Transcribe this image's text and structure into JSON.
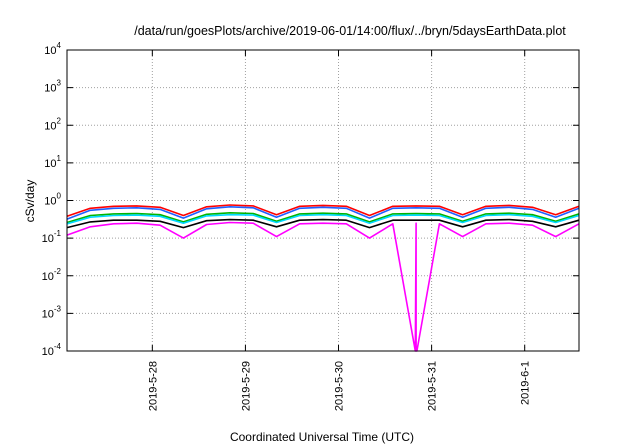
{
  "chart_data": {
    "type": "line",
    "title": "/data/run/goesPlots/archive/2019-06-01/14:00/flux/../bryn/5daysEarthData.plot",
    "xlabel": "Coordinated Universal Time (UTC)",
    "ylabel": "cSv/day",
    "y_scale": "log",
    "ylim": [
      0.0001,
      10000
    ],
    "y_ticks": [
      {
        "base": "10",
        "exp": "-4"
      },
      {
        "base": "10",
        "exp": "-3"
      },
      {
        "base": "10",
        "exp": "-2"
      },
      {
        "base": "10",
        "exp": "-1"
      },
      {
        "base": "10",
        "exp": "0"
      },
      {
        "base": "10",
        "exp": "1"
      },
      {
        "base": "10",
        "exp": "2"
      },
      {
        "base": "10",
        "exp": "3"
      },
      {
        "base": "10",
        "exp": "4"
      }
    ],
    "xlim": [
      "2019-05-27 02:00",
      "2019-06-01 14:00"
    ],
    "x_ticks": [
      "2019-5-28",
      "2019-5-29",
      "2019-5-30",
      "2019-5-31",
      "2019-6-1"
    ],
    "grid": true,
    "series": [
      {
        "color": "#ff0000",
        "values": [
          [
            "2019-05-27 02:00",
            0.38
          ],
          [
            "2019-05-27 08:00",
            0.62
          ],
          [
            "2019-05-27 14:00",
            0.7
          ],
          [
            "2019-05-27 20:00",
            0.72
          ],
          [
            "2019-05-28 02:00",
            0.66
          ],
          [
            "2019-05-28 08:00",
            0.4
          ],
          [
            "2019-05-28 14:00",
            0.68
          ],
          [
            "2019-05-28 20:00",
            0.76
          ],
          [
            "2019-05-29 02:00",
            0.72
          ],
          [
            "2019-05-29 08:00",
            0.42
          ],
          [
            "2019-05-29 14:00",
            0.7
          ],
          [
            "2019-05-29 20:00",
            0.74
          ],
          [
            "2019-05-30 02:00",
            0.7
          ],
          [
            "2019-05-30 08:00",
            0.4
          ],
          [
            "2019-05-30 14:00",
            0.7
          ],
          [
            "2019-05-30 20:00",
            0.72
          ],
          [
            "2019-05-31 02:00",
            0.7
          ],
          [
            "2019-05-31 08:00",
            0.42
          ],
          [
            "2019-05-31 14:00",
            0.7
          ],
          [
            "2019-05-31 20:00",
            0.74
          ],
          [
            "2019-06-01 02:00",
            0.66
          ],
          [
            "2019-06-01 08:00",
            0.42
          ],
          [
            "2019-06-01 14:00",
            0.7
          ]
        ]
      },
      {
        "color": "#1f5fff",
        "values": [
          [
            "2019-05-27 02:00",
            0.32
          ],
          [
            "2019-05-27 08:00",
            0.55
          ],
          [
            "2019-05-27 14:00",
            0.62
          ],
          [
            "2019-05-27 20:00",
            0.64
          ],
          [
            "2019-05-28 02:00",
            0.58
          ],
          [
            "2019-05-28 08:00",
            0.34
          ],
          [
            "2019-05-28 14:00",
            0.6
          ],
          [
            "2019-05-28 20:00",
            0.68
          ],
          [
            "2019-05-29 02:00",
            0.64
          ],
          [
            "2019-05-29 08:00",
            0.36
          ],
          [
            "2019-05-29 14:00",
            0.62
          ],
          [
            "2019-05-29 20:00",
            0.66
          ],
          [
            "2019-05-30 02:00",
            0.62
          ],
          [
            "2019-05-30 08:00",
            0.34
          ],
          [
            "2019-05-30 14:00",
            0.62
          ],
          [
            "2019-05-30 20:00",
            0.64
          ],
          [
            "2019-05-31 02:00",
            0.62
          ],
          [
            "2019-05-31 08:00",
            0.36
          ],
          [
            "2019-05-31 14:00",
            0.62
          ],
          [
            "2019-05-31 20:00",
            0.66
          ],
          [
            "2019-06-01 02:00",
            0.58
          ],
          [
            "2019-06-01 08:00",
            0.36
          ],
          [
            "2019-06-01 14:00",
            0.62
          ]
        ]
      },
      {
        "color": "#00b400",
        "values": [
          [
            "2019-05-27 02:00",
            0.26
          ],
          [
            "2019-05-27 08:00",
            0.4
          ],
          [
            "2019-05-27 14:00",
            0.44
          ],
          [
            "2019-05-27 20:00",
            0.45
          ],
          [
            "2019-05-28 02:00",
            0.42
          ],
          [
            "2019-05-28 08:00",
            0.27
          ],
          [
            "2019-05-28 14:00",
            0.43
          ],
          [
            "2019-05-28 20:00",
            0.47
          ],
          [
            "2019-05-29 02:00",
            0.45
          ],
          [
            "2019-05-29 08:00",
            0.28
          ],
          [
            "2019-05-29 14:00",
            0.44
          ],
          [
            "2019-05-29 20:00",
            0.46
          ],
          [
            "2019-05-30 02:00",
            0.44
          ],
          [
            "2019-05-30 08:00",
            0.27
          ],
          [
            "2019-05-30 14:00",
            0.44
          ],
          [
            "2019-05-30 20:00",
            0.45
          ],
          [
            "2019-05-31 02:00",
            0.44
          ],
          [
            "2019-05-31 08:00",
            0.28
          ],
          [
            "2019-05-31 14:00",
            0.44
          ],
          [
            "2019-05-31 20:00",
            0.46
          ],
          [
            "2019-06-01 02:00",
            0.42
          ],
          [
            "2019-06-01 08:00",
            0.28
          ],
          [
            "2019-06-01 14:00",
            0.44
          ]
        ]
      },
      {
        "color": "#00d8ff",
        "values": [
          [
            "2019-05-27 02:00",
            0.24
          ],
          [
            "2019-05-27 08:00",
            0.36
          ],
          [
            "2019-05-27 14:00",
            0.4
          ],
          [
            "2019-05-27 20:00",
            0.41
          ],
          [
            "2019-05-28 02:00",
            0.38
          ],
          [
            "2019-05-28 08:00",
            0.25
          ],
          [
            "2019-05-28 14:00",
            0.39
          ],
          [
            "2019-05-28 20:00",
            0.42
          ],
          [
            "2019-05-29 02:00",
            0.41
          ],
          [
            "2019-05-29 08:00",
            0.26
          ],
          [
            "2019-05-29 14:00",
            0.4
          ],
          [
            "2019-05-29 20:00",
            0.42
          ],
          [
            "2019-05-30 02:00",
            0.4
          ],
          [
            "2019-05-30 08:00",
            0.25
          ],
          [
            "2019-05-30 14:00",
            0.4
          ],
          [
            "2019-05-30 20:00",
            0.41
          ],
          [
            "2019-05-31 02:00",
            0.4
          ],
          [
            "2019-05-31 08:00",
            0.26
          ],
          [
            "2019-05-31 14:00",
            0.4
          ],
          [
            "2019-05-31 20:00",
            0.42
          ],
          [
            "2019-06-01 02:00",
            0.38
          ],
          [
            "2019-06-01 08:00",
            0.26
          ],
          [
            "2019-06-01 14:00",
            0.4
          ]
        ]
      },
      {
        "color": "#000000",
        "values": [
          [
            "2019-05-27 02:00",
            0.19
          ],
          [
            "2019-05-27 08:00",
            0.27
          ],
          [
            "2019-05-27 14:00",
            0.3
          ],
          [
            "2019-05-27 20:00",
            0.3
          ],
          [
            "2019-05-28 02:00",
            0.28
          ],
          [
            "2019-05-28 08:00",
            0.19
          ],
          [
            "2019-05-28 14:00",
            0.29
          ],
          [
            "2019-05-28 20:00",
            0.31
          ],
          [
            "2019-05-29 02:00",
            0.3
          ],
          [
            "2019-05-29 08:00",
            0.2
          ],
          [
            "2019-05-29 14:00",
            0.3
          ],
          [
            "2019-05-29 20:00",
            0.31
          ],
          [
            "2019-05-30 02:00",
            0.3
          ],
          [
            "2019-05-30 08:00",
            0.19
          ],
          [
            "2019-05-30 14:00",
            0.3
          ],
          [
            "2019-05-30 20:00",
            0.3
          ],
          [
            "2019-05-31 02:00",
            0.3
          ],
          [
            "2019-05-31 08:00",
            0.2
          ],
          [
            "2019-05-31 14:00",
            0.3
          ],
          [
            "2019-05-31 20:00",
            0.31
          ],
          [
            "2019-06-01 02:00",
            0.28
          ],
          [
            "2019-06-01 08:00",
            0.2
          ],
          [
            "2019-06-01 14:00",
            0.3
          ]
        ]
      },
      {
        "color": "#ff00ff",
        "values": [
          [
            "2019-05-27 02:00",
            0.12
          ],
          [
            "2019-05-27 08:00",
            0.2
          ],
          [
            "2019-05-27 14:00",
            0.24
          ],
          [
            "2019-05-27 20:00",
            0.25
          ],
          [
            "2019-05-28 02:00",
            0.22
          ],
          [
            "2019-05-28 08:00",
            0.1
          ],
          [
            "2019-05-28 14:00",
            0.23
          ],
          [
            "2019-05-28 20:00",
            0.26
          ],
          [
            "2019-05-29 02:00",
            0.25
          ],
          [
            "2019-05-29 08:00",
            0.11
          ],
          [
            "2019-05-29 14:00",
            0.24
          ],
          [
            "2019-05-29 20:00",
            0.25
          ],
          [
            "2019-05-30 02:00",
            0.24
          ],
          [
            "2019-05-30 08:00",
            0.1
          ],
          [
            "2019-05-30 14:00",
            0.24
          ],
          [
            "2019-05-30 20:00",
            0.25
          ],
          [
            "2019-05-30 19:48",
            0.0001
          ],
          [
            "2019-05-30 20:00",
            0.0001
          ],
          [
            "2019-05-30 20:12",
            0.0001
          ],
          [
            "2019-05-31 02:00",
            0.24
          ],
          [
            "2019-05-31 08:00",
            0.11
          ],
          [
            "2019-05-31 14:00",
            0.24
          ],
          [
            "2019-05-31 20:00",
            0.25
          ],
          [
            "2019-06-01 02:00",
            0.22
          ],
          [
            "2019-06-01 08:00",
            0.11
          ],
          [
            "2019-06-01 14:00",
            0.24
          ]
        ]
      }
    ]
  }
}
